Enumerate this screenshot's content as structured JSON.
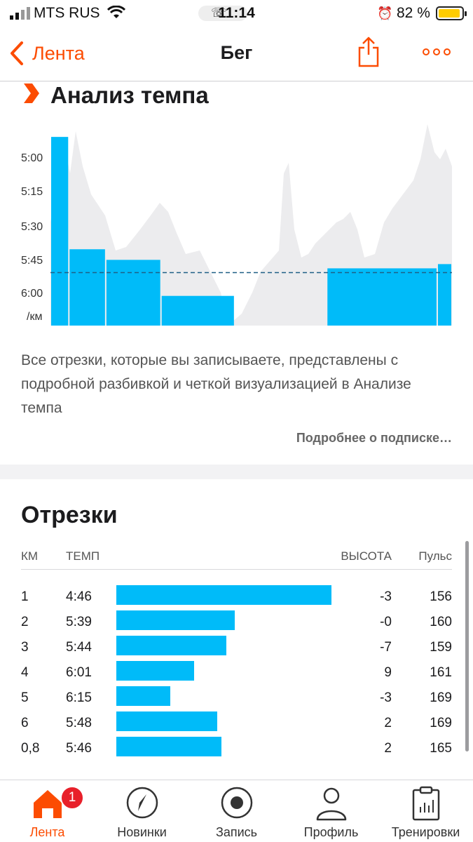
{
  "status": {
    "carrier": "MTS RUS",
    "time": "11:14",
    "battery": "82 %",
    "battery_level": 0.82
  },
  "nav": {
    "back_label": "Лента",
    "title": "Бег"
  },
  "pace_analysis": {
    "title": "Анализ темпа",
    "description": "Все отрезки, которые вы записываете, представлены с подробной разбивкой и четкой визуализацией в Анализе темпа",
    "more_link": "Подробнее о подписке…"
  },
  "chart_data": {
    "type": "bar",
    "y_ticks": [
      "5:00",
      "5:15",
      "5:30",
      "5:45",
      "6:00"
    ],
    "y_unit": "/км",
    "ylim": [
      "4:40",
      "6:15"
    ],
    "y_inverted": true,
    "categories": [
      "1",
      "2",
      "3",
      "4",
      "5",
      "6",
      "0,8"
    ],
    "values_sec_per_km": [
      286,
      339,
      344,
      361,
      375,
      348,
      346
    ],
    "average_line_sec_per_km": 350,
    "colors": {
      "bar": "#00bbf9",
      "background_area": "#ececee",
      "average_line": "#1f5f86"
    }
  },
  "splits": {
    "title": "Отрезки",
    "headers": {
      "km": "КМ",
      "pace": "ТЕМП",
      "elev": "ВЫСОТА",
      "hr": "Пульс"
    },
    "rows": [
      {
        "km": "1",
        "pace": "4:46",
        "elev": "-3",
        "hr": "156",
        "bar_fraction": 1.0
      },
      {
        "km": "2",
        "pace": "5:39",
        "elev": "-0",
        "hr": "160",
        "bar_fraction": 0.55
      },
      {
        "km": "3",
        "pace": "5:44",
        "elev": "-7",
        "hr": "159",
        "bar_fraction": 0.51
      },
      {
        "km": "4",
        "pace": "6:01",
        "elev": "9",
        "hr": "161",
        "bar_fraction": 0.36
      },
      {
        "km": "5",
        "pace": "6:15",
        "elev": "-3",
        "hr": "169",
        "bar_fraction": 0.25
      },
      {
        "km": "6",
        "pace": "5:48",
        "elev": "2",
        "hr": "169",
        "bar_fraction": 0.47
      },
      {
        "km": "0,8",
        "pace": "5:46",
        "elev": "2",
        "hr": "165",
        "bar_fraction": 0.49
      }
    ]
  },
  "tabs": [
    {
      "label": "Лента",
      "icon": "home-icon",
      "active": true,
      "badge": "1"
    },
    {
      "label": "Новинки",
      "icon": "compass-icon",
      "active": false
    },
    {
      "label": "Запись",
      "icon": "record-icon",
      "active": false
    },
    {
      "label": "Профиль",
      "icon": "profile-icon",
      "active": false
    },
    {
      "label": "Тренировки",
      "icon": "training-plan-icon",
      "active": false
    }
  ],
  "colors": {
    "accent": "#fc4c02",
    "bar": "#00bbf9"
  }
}
